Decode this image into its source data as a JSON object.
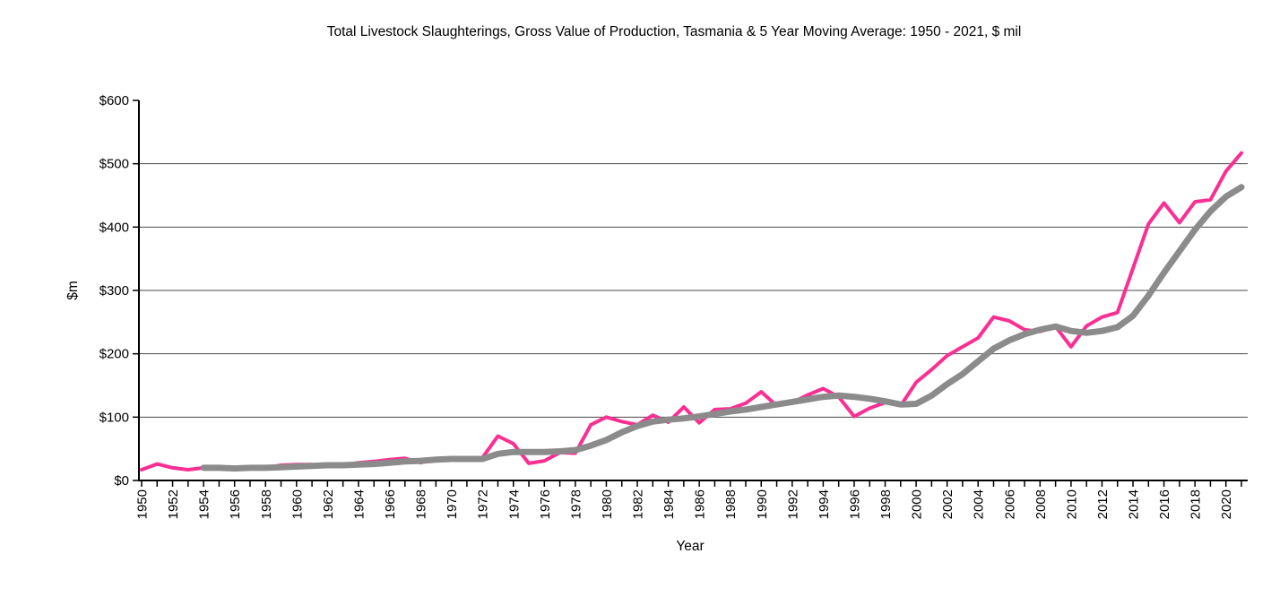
{
  "chart_data": {
    "type": "line",
    "title": "Total Livestock Slaughterings, Gross Value of Production, Tasmania & 5 Year Moving Average: 1950 - 2021, $ mil",
    "xlabel": "Year",
    "ylabel": "$m",
    "grid": true,
    "legend": "none",
    "ylim": [
      0,
      600
    ],
    "ytick_step": 100,
    "ytick_labels": [
      "$0",
      "$100",
      "$200",
      "$300",
      "$400",
      "$500",
      "$600"
    ],
    "xlim": [
      1950,
      2021
    ],
    "xtick_every_year": true,
    "xtick_label_years": [
      1950,
      1952,
      1954,
      1956,
      1958,
      1960,
      1962,
      1964,
      1966,
      1968,
      1970,
      1972,
      1974,
      1976,
      1978,
      1980,
      1982,
      1984,
      1986,
      1988,
      1990,
      1992,
      1994,
      1996,
      1998,
      2000,
      2002,
      2004,
      2006,
      2008,
      2010,
      2012,
      2014,
      2016,
      2018,
      2020
    ],
    "series": [
      {
        "name": "Gross Value of Production",
        "color": "#FB2F92",
        "stroke_width": 4,
        "x_start": 1950,
        "values": [
          17,
          26,
          20,
          17,
          20,
          20,
          18,
          21,
          20,
          24,
          25,
          25,
          22,
          24,
          28,
          30,
          33,
          35,
          28,
          34,
          35,
          33,
          36,
          70,
          58,
          27,
          31,
          44,
          43,
          88,
          100,
          93,
          88,
          103,
          92,
          116,
          91,
          112,
          113,
          122,
          140,
          118,
          123,
          135,
          145,
          132,
          101,
          114,
          123,
          118,
          155,
          175,
          197,
          211,
          225,
          258,
          252,
          238,
          235,
          243,
          211,
          244,
          258,
          265,
          335,
          405,
          438,
          407,
          440,
          443,
          488,
          517
        ]
      },
      {
        "name": "5 Year Moving Average",
        "color": "#8B8B8B",
        "stroke_width": 7,
        "x_start": 1954,
        "values": [
          20,
          20,
          19,
          20,
          20,
          21,
          22,
          23,
          24,
          24,
          25,
          26,
          28,
          30,
          31,
          33,
          34,
          34,
          34,
          42,
          45,
          45,
          45,
          46,
          48,
          55,
          64,
          76,
          86,
          93,
          96,
          98,
          101,
          105,
          109,
          112,
          116,
          120,
          124,
          128,
          132,
          134,
          132,
          129,
          125,
          120,
          121,
          134,
          152,
          168,
          188,
          208,
          221,
          231,
          238,
          243,
          236,
          233,
          236,
          242,
          260,
          292,
          328,
          362,
          396,
          425,
          448,
          463
        ]
      }
    ],
    "colors": {
      "gridline": "#4a4a4a",
      "axis": "#000000",
      "background": "#ffffff"
    }
  }
}
